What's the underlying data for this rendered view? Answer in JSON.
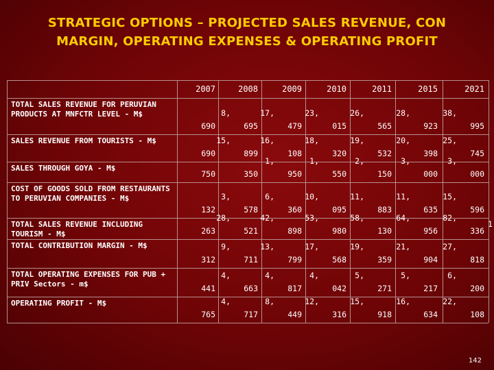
{
  "title": {
    "line1": "STRATEGIC OPTIONS – PROJECTED SALES REVENUE, CON",
    "line2": "MARGIN, OPERATING EXPENSES & OPERATING PROFIT"
  },
  "table": {
    "years": [
      "2007",
      "2008",
      "2009",
      "2010",
      "2011",
      "2015",
      "2021"
    ],
    "rows": [
      {
        "label": "TOTAL SALES REVENUE FOR PERUVIAN PRODUCTS AT MNFCTR LEVEL - M$",
        "values": [
          [
            "690"
          ],
          [
            "8,",
            "695"
          ],
          [
            "17,",
            "479"
          ],
          [
            "23,",
            "015"
          ],
          [
            "26,",
            "565"
          ],
          [
            "28,",
            "923"
          ],
          [
            "38,",
            "995"
          ]
        ]
      },
      {
        "label": "SALES REVENUE FROM TOURISTS - M$",
        "values": [
          [
            "690"
          ],
          [
            "15,",
            "899"
          ],
          [
            "16,",
            "108"
          ],
          [
            "18,",
            "320"
          ],
          [
            "19,",
            "532"
          ],
          [
            "20,",
            "398"
          ],
          [
            "25,",
            "745"
          ]
        ]
      },
      {
        "label": "SALES THROUGH GOYA - M$",
        "values": [
          [
            "750"
          ],
          [
            "350"
          ],
          [
            "1,",
            "950"
          ],
          [
            "1,",
            "550"
          ],
          [
            "2,",
            "150"
          ],
          [
            "3,",
            "000"
          ],
          [
            "3,",
            "000"
          ]
        ]
      },
      {
        "label": "COST OF GOODS SOLD FROM RESTAURANTS TO PERUVIAN COMPANIES - M$",
        "values": [
          [
            "132"
          ],
          [
            "3,",
            "578"
          ],
          [
            "6,",
            "360"
          ],
          [
            "10,",
            "095"
          ],
          [
            "11,",
            "883"
          ],
          [
            "11,",
            "635"
          ],
          [
            "15,",
            "596"
          ]
        ]
      },
      {
        "label": "TOTAL SALES REVENUE INCLUDING TOURISM - M$",
        "values": [
          [
            "263"
          ],
          [
            "28,",
            "521"
          ],
          [
            "42,",
            "898"
          ],
          [
            "53,",
            "980"
          ],
          [
            "58,",
            "130"
          ],
          [
            "64,",
            "956"
          ],
          [
            "82,",
            "336"
          ]
        ]
      },
      {
        "label": "TOTAL CONTRIBUTION MARGIN - M$",
        "values": [
          [
            "312"
          ],
          [
            "9,",
            "711"
          ],
          [
            "13,",
            "799"
          ],
          [
            "17,",
            "568"
          ],
          [
            "19,",
            "359"
          ],
          [
            "21,",
            "904"
          ],
          [
            "27,",
            "818"
          ]
        ]
      },
      {
        "label": "TOTAL OPERATING EXPENSES FOR PUB + PRIV Sectors - m$",
        "values": [
          [
            "441"
          ],
          [
            "4,",
            "663"
          ],
          [
            "4,",
            "817"
          ],
          [
            "4,",
            "042"
          ],
          [
            "5,",
            "271"
          ],
          [
            "5,",
            "217"
          ],
          [
            "6,",
            "200"
          ]
        ]
      },
      {
        "label": "OPERATING PROFIT - M$",
        "values": [
          [
            "765"
          ],
          [
            "4,",
            "717"
          ],
          [
            "8,",
            "449"
          ],
          [
            "12,",
            "316"
          ],
          [
            "15,",
            "918"
          ],
          [
            "16,",
            "634"
          ],
          [
            "22,",
            "108"
          ]
        ]
      }
    ],
    "overflow_mark": "1"
  },
  "page_number": "142"
}
